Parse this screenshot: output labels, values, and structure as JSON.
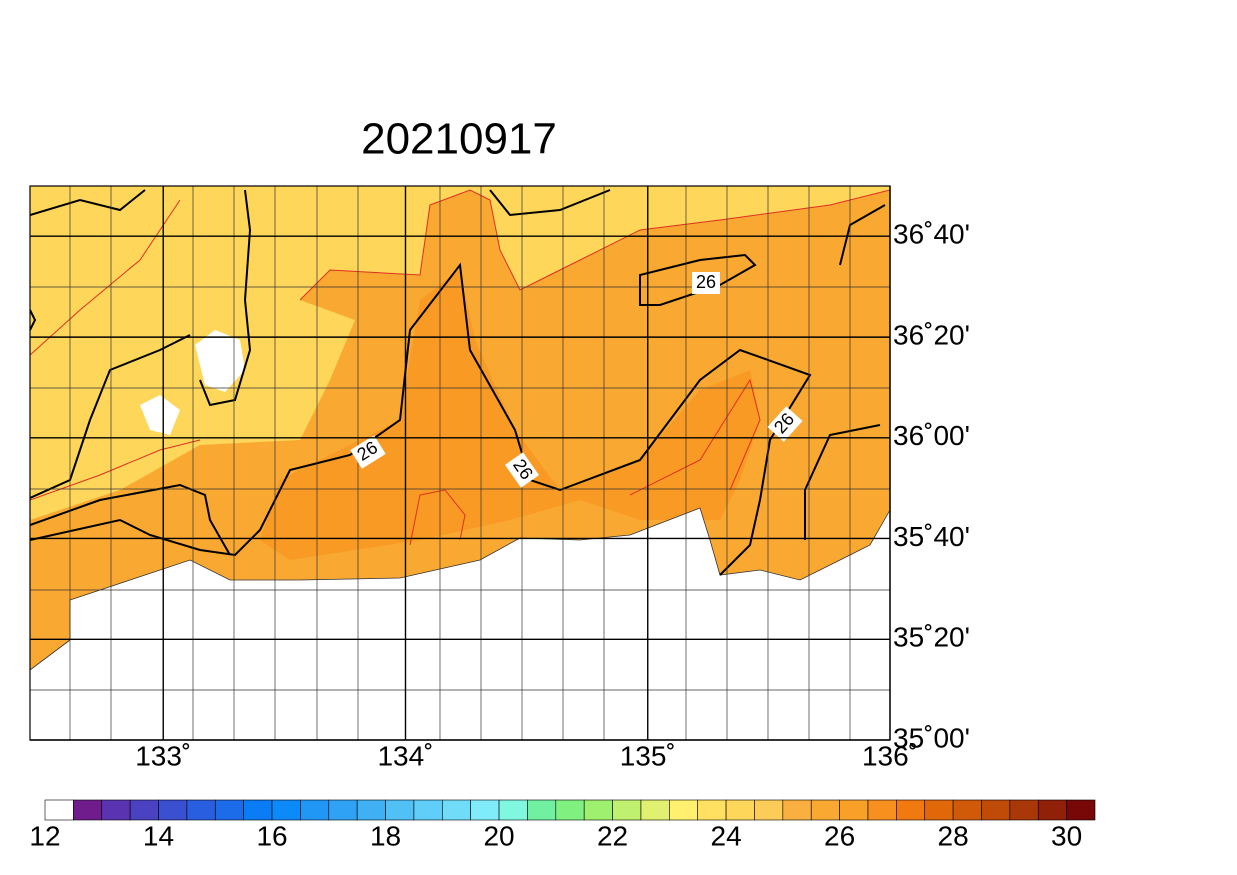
{
  "title": "20210917",
  "map": {
    "lon_range": [
      132.45,
      136
    ],
    "lat_range": [
      35,
      36.833
    ],
    "lon_ticks": [
      {
        "value": 133,
        "label": "133˚"
      },
      {
        "value": 134,
        "label": "134˚"
      },
      {
        "value": 135,
        "label": "135˚"
      },
      {
        "value": 136,
        "label": "136˚"
      }
    ],
    "lat_ticks": [
      {
        "value": 36.667,
        "label": "36˚40'"
      },
      {
        "value": 36.333,
        "label": "36˚20'"
      },
      {
        "value": 36,
        "label": "36˚00'"
      },
      {
        "value": 35.667,
        "label": "35˚40'"
      },
      {
        "value": 35.333,
        "label": "35˚20'"
      },
      {
        "value": 35,
        "label": "35˚00'"
      }
    ],
    "contour_labels": [
      "26",
      "26",
      "26",
      "26"
    ]
  },
  "colorbar": {
    "range": [
      12,
      30.5
    ],
    "ticks": [
      12,
      14,
      16,
      18,
      20,
      22,
      24,
      26,
      28,
      30
    ],
    "colors": [
      "#ffffff",
      "#701c8c",
      "#5a34b0",
      "#4a42c0",
      "#3a50d0",
      "#2a5ee0",
      "#1c6cea",
      "#0a7cf5",
      "#0c8af8",
      "#2096f5",
      "#30a2f5",
      "#40b0f5",
      "#50c0f5",
      "#60cef8",
      "#70dcf8",
      "#80ecfa",
      "#80f8e0",
      "#70f0a0",
      "#80f080",
      "#a0f070",
      "#c0f070",
      "#e0f070",
      "#fff070",
      "#ffe060",
      "#fdd65a",
      "#fccc58",
      "#f9b040",
      "#f9a832",
      "#f9a028",
      "#f89020",
      "#f07a10",
      "#e06808",
      "#d05a08",
      "#c04a08",
      "#a83808",
      "#902008",
      "#780808"
    ]
  }
}
